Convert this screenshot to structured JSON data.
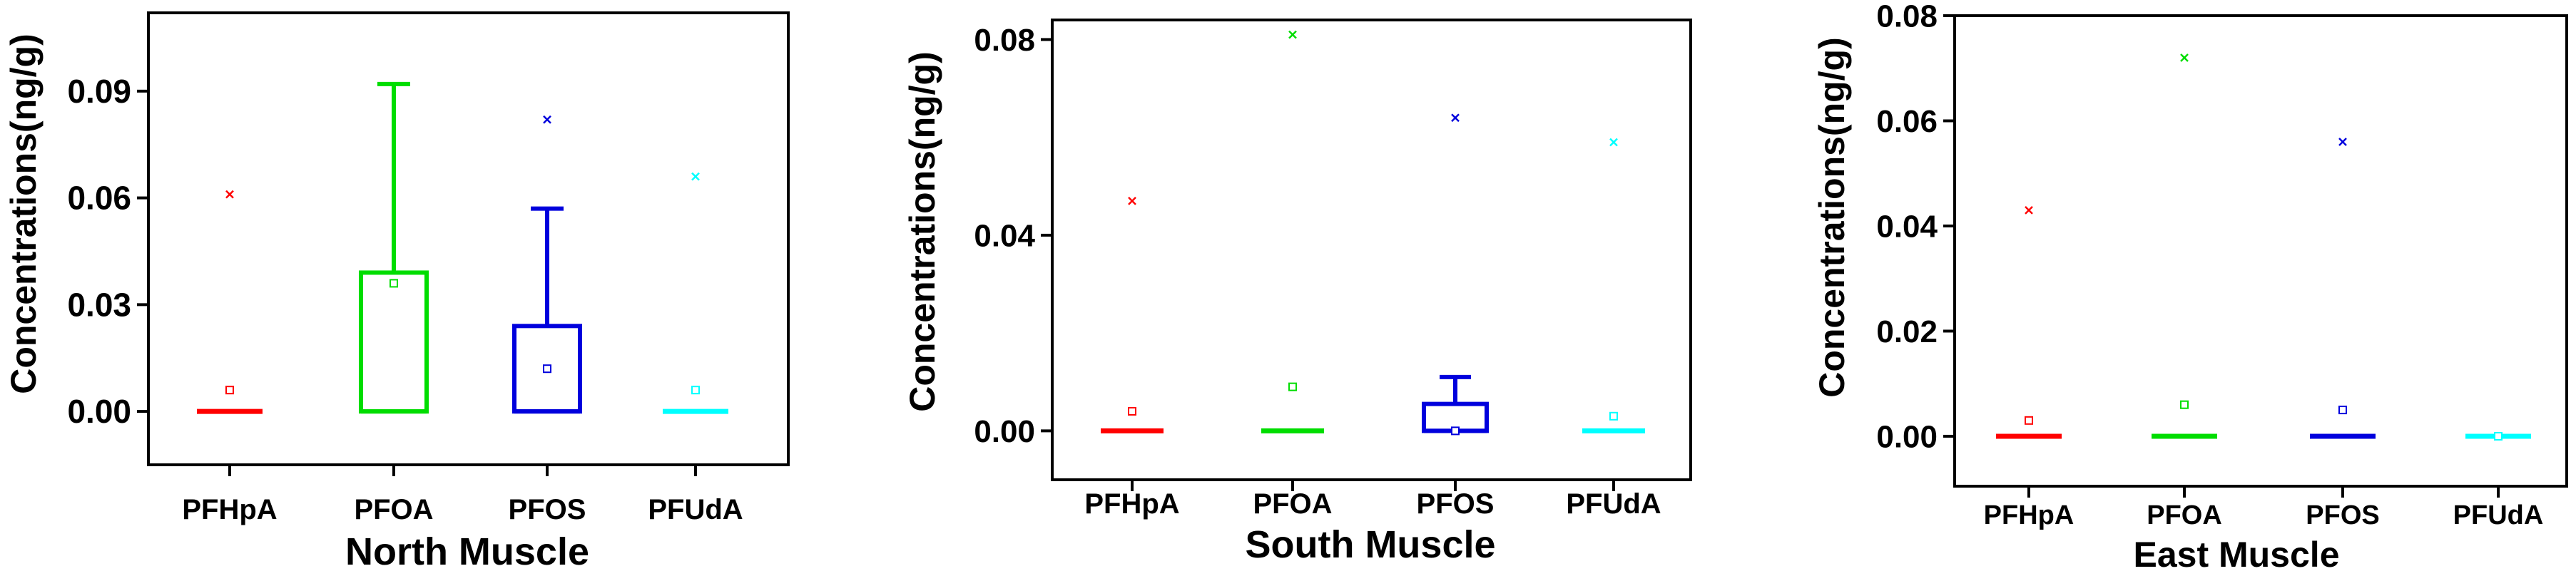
{
  "chart_data": [
    {
      "type": "box",
      "xlabel": "North Muscle",
      "ylabel": "Concentrations(ng/g)",
      "categories": [
        "PFHpA",
        "PFOA",
        "PFOS",
        "PFUdA"
      ],
      "ylim": [
        -0.015,
        0.112
      ],
      "yticks": [
        0.0,
        0.03,
        0.06,
        0.09
      ],
      "ytick_labels": [
        "0.00",
        "0.03",
        "0.06",
        "0.09"
      ],
      "boxes": [
        {
          "category": "PFHpA",
          "color": "#ff0000",
          "q1": 0.0,
          "q3": 0.0,
          "median": 0.0,
          "whisker_low": 0.0,
          "whisker_high": 0.0,
          "mean": 0.006,
          "max": 0.061
        },
        {
          "category": "PFOA",
          "color": "#00dd00",
          "q1": 0.0,
          "q3": 0.039,
          "median": 0.0,
          "whisker_low": 0.0,
          "whisker_high": 0.092,
          "mean": 0.036,
          "max": null
        },
        {
          "category": "PFOS",
          "color": "#0000dd",
          "q1": 0.0,
          "q3": 0.024,
          "median": 0.0,
          "whisker_low": 0.0,
          "whisker_high": 0.057,
          "mean": 0.012,
          "max": 0.082
        },
        {
          "category": "PFUdA",
          "color": "#00ffff",
          "q1": 0.0,
          "q3": 0.0,
          "median": 0.0,
          "whisker_low": 0.0,
          "whisker_high": 0.0,
          "mean": 0.006,
          "max": 0.066
        }
      ]
    },
    {
      "type": "box",
      "xlabel": "South Muscle",
      "ylabel": "Concentrations(ng/g)",
      "categories": [
        "PFHpA",
        "PFOA",
        "PFOS",
        "PFUdA"
      ],
      "ylim": [
        -0.01,
        0.084
      ],
      "yticks": [
        0.0,
        0.04,
        0.08
      ],
      "ytick_labels": [
        "0.00",
        "0.04",
        "0.08"
      ],
      "boxes": [
        {
          "category": "PFHpA",
          "color": "#ff0000",
          "q1": 0.0,
          "q3": 0.0,
          "median": 0.0,
          "whisker_low": 0.0,
          "whisker_high": 0.0,
          "mean": 0.004,
          "max": 0.047
        },
        {
          "category": "PFOA",
          "color": "#00dd00",
          "q1": 0.0,
          "q3": 0.0,
          "median": 0.0,
          "whisker_low": 0.0,
          "whisker_high": 0.0,
          "mean": 0.009,
          "max": 0.081
        },
        {
          "category": "PFOS",
          "color": "#0000dd",
          "q1": 0.0,
          "q3": 0.0055,
          "median": 0.0,
          "whisker_low": 0.0,
          "whisker_high": 0.011,
          "mean": 0.0,
          "max": 0.064
        },
        {
          "category": "PFUdA",
          "color": "#00ffff",
          "q1": 0.0,
          "q3": 0.0,
          "median": 0.0,
          "whisker_low": 0.0,
          "whisker_high": 0.0,
          "mean": 0.003,
          "max": 0.059
        }
      ]
    },
    {
      "type": "box",
      "xlabel": "East Muscle",
      "ylabel": "Concentrations(ng/g)",
      "categories": [
        "PFHpA",
        "PFOA",
        "PFOS",
        "PFUdA"
      ],
      "ylim": [
        -0.0095,
        0.08
      ],
      "yticks": [
        0.0,
        0.02,
        0.04,
        0.06,
        0.08
      ],
      "ytick_labels": [
        "0.00",
        "0.02",
        "0.04",
        "0.06",
        "0.08"
      ],
      "boxes": [
        {
          "category": "PFHpA",
          "color": "#ff0000",
          "q1": 0.0,
          "q3": 0.0,
          "median": 0.0,
          "whisker_low": 0.0,
          "whisker_high": 0.0,
          "mean": 0.003,
          "max": 0.043
        },
        {
          "category": "PFOA",
          "color": "#00dd00",
          "q1": 0.0,
          "q3": 0.0,
          "median": 0.0,
          "whisker_low": 0.0,
          "whisker_high": 0.0,
          "mean": 0.006,
          "max": 0.072
        },
        {
          "category": "PFOS",
          "color": "#0000dd",
          "q1": 0.0,
          "q3": 0.0,
          "median": 0.0,
          "whisker_low": 0.0,
          "whisker_high": 0.0,
          "mean": 0.005,
          "max": 0.056
        },
        {
          "category": "PFUdA",
          "color": "#00ffff",
          "q1": 0.0,
          "q3": 0.0,
          "median": 0.0,
          "whisker_low": 0.0,
          "whisker_high": 0.0,
          "mean": 0.0,
          "max": null
        }
      ]
    }
  ]
}
